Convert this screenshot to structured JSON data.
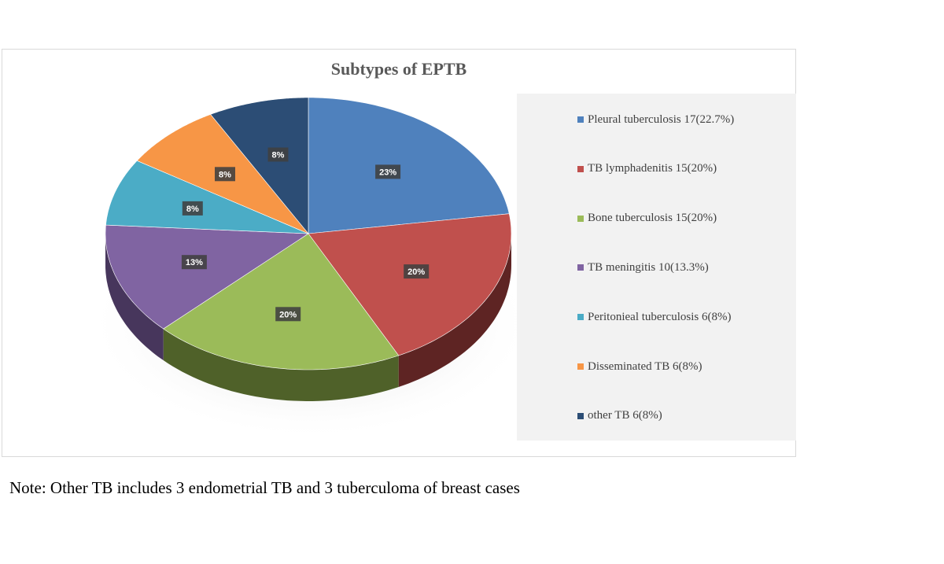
{
  "chart_data": {
    "type": "pie",
    "title": "Subtypes of EPTB",
    "legend_position": "right",
    "slices": [
      {
        "legend": "Pleural tuberculosis 17(22.7%)",
        "value": 17,
        "label": "23%",
        "color": "#4f81bd",
        "side": "#2c4a70"
      },
      {
        "legend": "TB lymphadenitis 15(20%)",
        "value": 15,
        "label": "20%",
        "color": "#c0504d",
        "side": "#5e2423"
      },
      {
        "legend": "Bone tuberculosis  15(20%)",
        "value": 15,
        "label": "20%",
        "color": "#9bbb59",
        "side": "#4f6129"
      },
      {
        "legend": "TB meningitis 10(13.3%)",
        "value": 10,
        "label": "13%",
        "color": "#8064a2",
        "side": "#47365c"
      },
      {
        "legend": "Peritonieal tuberculosis 6(8%)",
        "value": 6,
        "label": "8%",
        "color": "#4bacc6",
        "side": "#25606f"
      },
      {
        "legend": "Disseminated TB 6(8%)",
        "value": 6,
        "label": "8%",
        "color": "#f79646",
        "side": "#8f5221"
      },
      {
        "legend": "other TB 6(8%)",
        "value": 6,
        "label": "8%",
        "color": "#2c4d75",
        "side": "#17293f"
      }
    ]
  },
  "note": "Note: Other TB includes 3 endometrial TB and 3 tuberculoma of breast cases"
}
